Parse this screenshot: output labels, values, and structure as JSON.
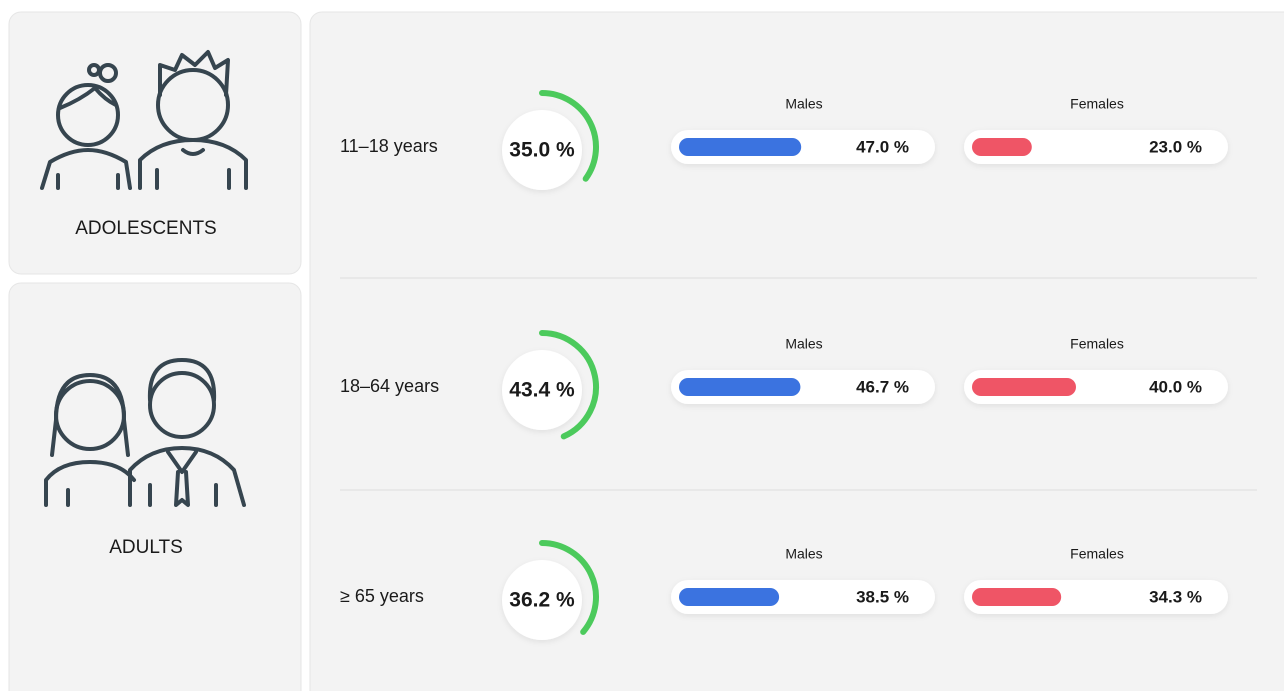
{
  "groups": [
    {
      "label": "ADOLESCENTS"
    },
    {
      "label": "ADULTS"
    }
  ],
  "rows": [
    {
      "age": "11–18 years",
      "total": {
        "value": 35.0,
        "label": "35.0 %"
      },
      "males_label": "Males",
      "males": {
        "value": 47.0,
        "label": "47.0 %"
      },
      "females_label": "Females",
      "females": {
        "value": 23.0,
        "label": "23.0 %"
      }
    },
    {
      "age": "18–64 years",
      "total": {
        "value": 43.4,
        "label": "43.4 %"
      },
      "males_label": "Males",
      "males": {
        "value": 46.7,
        "label": "46.7 %"
      },
      "females_label": "Females",
      "females": {
        "value": 40.0,
        "label": "40.0 %"
      }
    },
    {
      "age": "≥ 65 years",
      "total": {
        "value": 36.2,
        "label": "36.2 %"
      },
      "males_label": "Males",
      "males": {
        "value": 38.5,
        "label": "38.5 %"
      },
      "females_label": "Females",
      "females": {
        "value": 34.3,
        "label": "34.3 %"
      }
    }
  ]
}
